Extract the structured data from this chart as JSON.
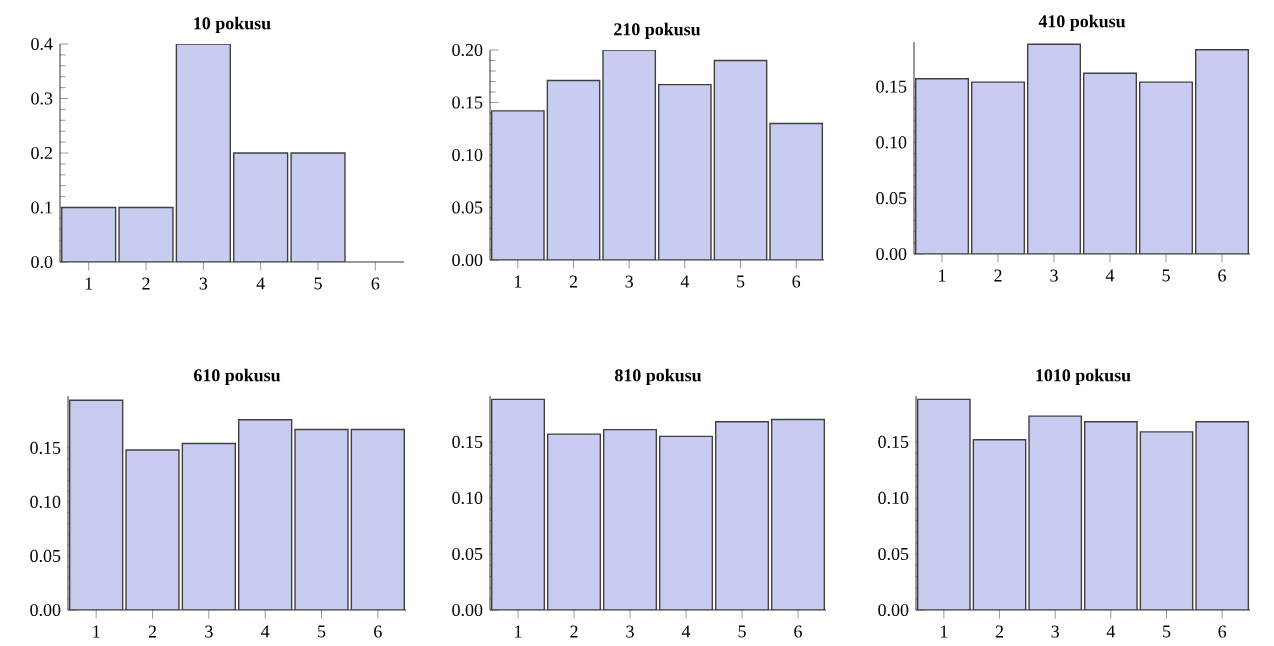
{
  "chart_data": [
    {
      "type": "bar",
      "title": "10  pokusu",
      "categories": [
        "1",
        "2",
        "3",
        "4",
        "5",
        "6"
      ],
      "values": [
        0.1,
        0.1,
        0.4,
        0.2,
        0.2,
        0
      ],
      "color": "#c8ccf0",
      "ylim": [
        0,
        0.4
      ],
      "yticks": [
        {
          "value": 0,
          "label": "0.0"
        },
        0.1,
        0.2,
        0.3,
        0.4
      ]
    },
    {
      "type": "bar",
      "title": "210  pokusu",
      "categories": [
        "1",
        "2",
        "3",
        "4",
        "5",
        "6"
      ],
      "values": [
        0.142,
        0.171,
        0.2,
        0.167,
        0.19,
        0.13
      ],
      "color": "#c8ccf0",
      "ylim": [
        0,
        0.2
      ],
      "yticks": [
        {
          "value": 0,
          "label": "0.00"
        },
        0.05,
        {
          "value": 0.1,
          "label": "0.10"
        },
        0.15,
        {
          "value": 0.2,
          "label": "0.20"
        }
      ]
    },
    {
      "type": "bar",
      "title": "410  pokusu",
      "categories": [
        "1",
        "2",
        "3",
        "4",
        "5",
        "6"
      ],
      "values": [
        0.157,
        0.154,
        0.188,
        0.162,
        0.154,
        0.183
      ],
      "color": "#c8ccf0",
      "ylim": [
        0,
        0.19
      ],
      "yticks": [
        {
          "value": 0,
          "label": "0.00"
        },
        0.05,
        {
          "value": 0.1,
          "label": "0.10"
        },
        0.15
      ]
    },
    {
      "type": "bar",
      "title": "610  pokusu",
      "categories": [
        "1",
        "2",
        "3",
        "4",
        "5",
        "6"
      ],
      "values": [
        0.194,
        0.148,
        0.154,
        0.176,
        0.167,
        0.167
      ],
      "color": "#c8ccf0",
      "ylim": [
        0,
        0.198
      ],
      "yticks": [
        {
          "value": 0,
          "label": "0.00"
        },
        0.05,
        {
          "value": 0.1,
          "label": "0.10"
        },
        0.15
      ]
    },
    {
      "type": "bar",
      "title": "810  pokusu",
      "categories": [
        "1",
        "2",
        "3",
        "4",
        "5",
        "6"
      ],
      "values": [
        0.188,
        0.157,
        0.161,
        0.155,
        0.168,
        0.17
      ],
      "color": "#c8ccf0",
      "ylim": [
        0,
        0.191
      ],
      "yticks": [
        {
          "value": 0,
          "label": "0.00"
        },
        0.05,
        {
          "value": 0.1,
          "label": "0.10"
        },
        0.15
      ]
    },
    {
      "type": "bar",
      "title": "1010  pokusu",
      "categories": [
        "1",
        "2",
        "3",
        "4",
        "5",
        "6"
      ],
      "values": [
        0.188,
        0.152,
        0.173,
        0.168,
        0.159,
        0.168
      ],
      "color": "#c8ccf0",
      "ylim": [
        0,
        0.191
      ],
      "yticks": [
        {
          "value": 0,
          "label": "0.00"
        },
        0.05,
        {
          "value": 0.1,
          "label": "0.10"
        },
        0.15
      ]
    }
  ]
}
